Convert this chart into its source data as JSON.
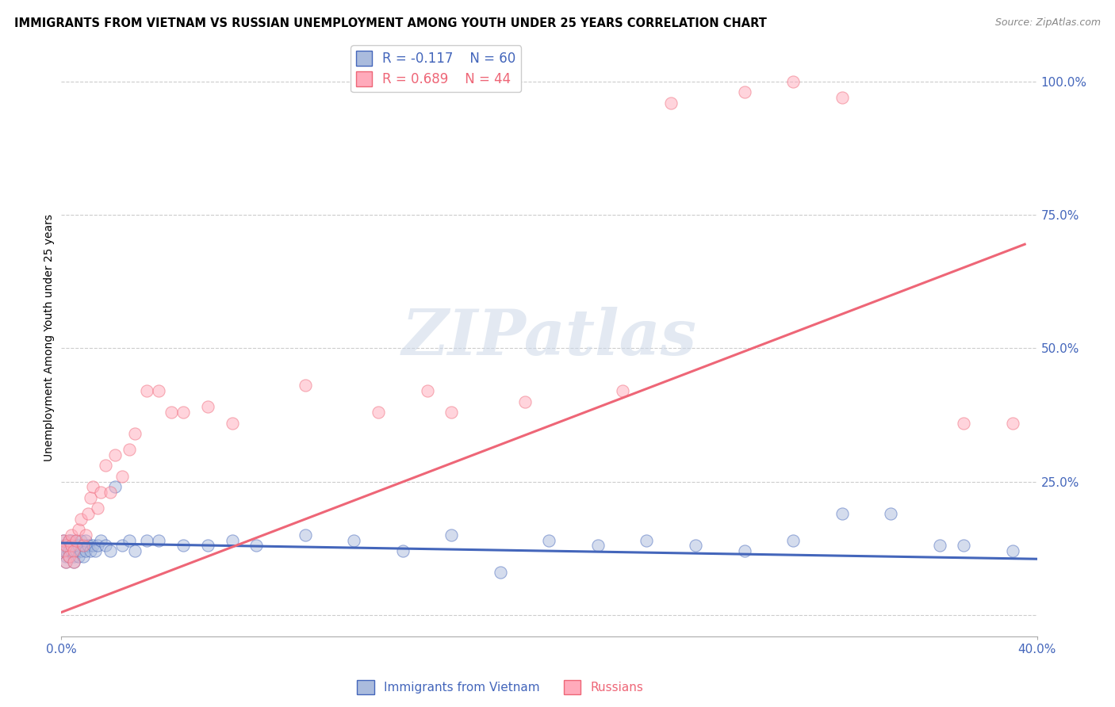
{
  "title": "IMMIGRANTS FROM VIETNAM VS RUSSIAN UNEMPLOYMENT AMONG YOUTH UNDER 25 YEARS CORRELATION CHART",
  "source": "Source: ZipAtlas.com",
  "ylabel": "Unemployment Among Youth under 25 years",
  "xlim": [
    0.0,
    0.4
  ],
  "ylim": [
    -0.04,
    1.08
  ],
  "color_blue": "#aabbdd",
  "color_pink": "#ffaabb",
  "color_blue_line": "#4466bb",
  "color_pink_line": "#ee6677",
  "watermark": "ZIPatlas",
  "blue_line_x": [
    0.0,
    0.4
  ],
  "blue_line_y": [
    0.135,
    0.105
  ],
  "pink_line_x": [
    0.0,
    0.395
  ],
  "pink_line_y": [
    0.005,
    0.695
  ],
  "blue_r": "R = -0.117",
  "blue_n": "N = 60",
  "pink_r": "R = 0.689",
  "pink_n": "N = 44",
  "legend_label_blue": "Immigrants from Vietnam",
  "legend_label_pink": "Russians",
  "ytick_vals": [
    0.0,
    0.25,
    0.5,
    0.75,
    1.0
  ],
  "ytick_labels": [
    "",
    "25.0%",
    "50.0%",
    "75.0%",
    "100.0%"
  ],
  "xtick_vals": [
    0.0,
    0.4
  ],
  "xtick_labels": [
    "0.0%",
    "40.0%"
  ],
  "blue_x": [
    0.001,
    0.001,
    0.001,
    0.002,
    0.002,
    0.002,
    0.002,
    0.003,
    0.003,
    0.003,
    0.004,
    0.004,
    0.004,
    0.005,
    0.005,
    0.005,
    0.006,
    0.006,
    0.007,
    0.007,
    0.008,
    0.008,
    0.009,
    0.009,
    0.01,
    0.01,
    0.011,
    0.012,
    0.013,
    0.014,
    0.015,
    0.016,
    0.018,
    0.02,
    0.022,
    0.025,
    0.028,
    0.03,
    0.035,
    0.04,
    0.05,
    0.06,
    0.07,
    0.08,
    0.1,
    0.12,
    0.14,
    0.16,
    0.18,
    0.2,
    0.22,
    0.24,
    0.26,
    0.28,
    0.3,
    0.32,
    0.34,
    0.36,
    0.37,
    0.39
  ],
  "blue_y": [
    0.13,
    0.12,
    0.14,
    0.11,
    0.13,
    0.12,
    0.1,
    0.14,
    0.12,
    0.11,
    0.13,
    0.12,
    0.14,
    0.11,
    0.13,
    0.1,
    0.12,
    0.14,
    0.13,
    0.11,
    0.12,
    0.14,
    0.13,
    0.11,
    0.12,
    0.14,
    0.13,
    0.12,
    0.13,
    0.12,
    0.13,
    0.14,
    0.13,
    0.12,
    0.24,
    0.13,
    0.14,
    0.12,
    0.14,
    0.14,
    0.13,
    0.13,
    0.14,
    0.13,
    0.15,
    0.14,
    0.12,
    0.15,
    0.08,
    0.14,
    0.13,
    0.14,
    0.13,
    0.12,
    0.14,
    0.19,
    0.19,
    0.13,
    0.13,
    0.12
  ],
  "pink_x": [
    0.001,
    0.001,
    0.002,
    0.002,
    0.003,
    0.003,
    0.004,
    0.004,
    0.005,
    0.005,
    0.006,
    0.007,
    0.008,
    0.009,
    0.01,
    0.011,
    0.012,
    0.013,
    0.015,
    0.016,
    0.018,
    0.02,
    0.022,
    0.025,
    0.028,
    0.03,
    0.035,
    0.04,
    0.045,
    0.05,
    0.06,
    0.07,
    0.1,
    0.13,
    0.15,
    0.16,
    0.19,
    0.23,
    0.25,
    0.28,
    0.3,
    0.32,
    0.37,
    0.39
  ],
  "pink_y": [
    0.12,
    0.14,
    0.1,
    0.13,
    0.14,
    0.11,
    0.13,
    0.15,
    0.12,
    0.1,
    0.14,
    0.16,
    0.18,
    0.13,
    0.15,
    0.19,
    0.22,
    0.24,
    0.2,
    0.23,
    0.28,
    0.23,
    0.3,
    0.26,
    0.31,
    0.34,
    0.42,
    0.42,
    0.38,
    0.38,
    0.39,
    0.36,
    0.43,
    0.38,
    0.42,
    0.38,
    0.4,
    0.42,
    0.96,
    0.98,
    1.0,
    0.97,
    0.36,
    0.36
  ]
}
